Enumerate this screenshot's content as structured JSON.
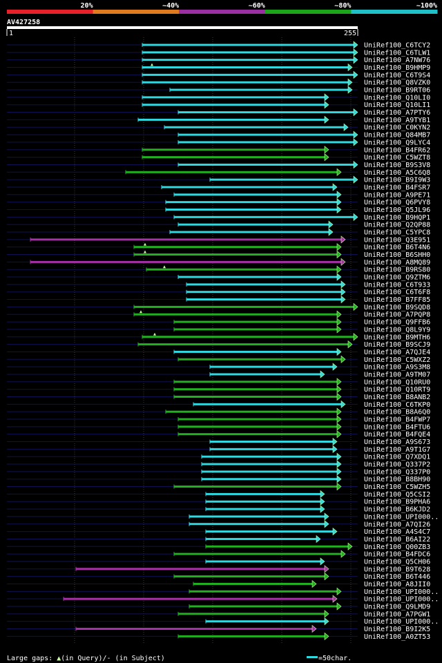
{
  "chart_data": {
    "type": "alignment-overview",
    "query_name": "AV427258",
    "query_start": "1",
    "query_end": "255",
    "identity_legend": [
      {
        "label": "20%",
        "color": "#e8202a"
      },
      {
        "label": "~40%",
        "color": "#e07a1f"
      },
      {
        "label": "~60%",
        "color": "#9a2ea3"
      },
      {
        "label": "~80%",
        "color": "#1aa51a"
      },
      {
        "label": "~100%",
        "color": "#20c0c8"
      }
    ],
    "colors": {
      "navy": "#101050",
      "grid": "#3a3a3a",
      "cyan": "#30d8e0",
      "green": "#20b020",
      "magenta": "#a830a8",
      "marker": "#c8ffa0"
    },
    "footer": {
      "gaps_label": "Large gaps: ",
      "gaps_query": "(in Query)/",
      "gaps_subject": "- (in Subject)",
      "scale_label": "=50char."
    },
    "x_domain": [
      1,
      255
    ],
    "hits": [
      {
        "name": "UniRef100_C6TCY2",
        "color": "cyan",
        "start": 99,
        "end": 255,
        "markers": []
      },
      {
        "name": "UniRef100_C6TLW1",
        "color": "cyan",
        "start": 99,
        "end": 255,
        "markers": []
      },
      {
        "name": "UniRef100_A7NW76",
        "color": "cyan",
        "start": 99,
        "end": 255,
        "markers": []
      },
      {
        "name": "UniRef100_B9HMP9",
        "color": "cyan",
        "start": 99,
        "end": 251,
        "markers": [
          106
        ]
      },
      {
        "name": "UniRef100_C6T9S4",
        "color": "cyan",
        "start": 99,
        "end": 255,
        "markers": []
      },
      {
        "name": "UniRef100_Q8VZK0",
        "color": "cyan",
        "start": 99,
        "end": 251,
        "markers": []
      },
      {
        "name": "UniRef100_B9RT06",
        "color": "cyan",
        "start": 119,
        "end": 251,
        "markers": []
      },
      {
        "name": "UniRef100_Q10LI0",
        "color": "cyan",
        "start": 99,
        "end": 234,
        "markers": []
      },
      {
        "name": "UniRef100_Q10LI1",
        "color": "cyan",
        "start": 99,
        "end": 234,
        "markers": []
      },
      {
        "name": "UniRef100_A7PTY6",
        "color": "cyan",
        "start": 125,
        "end": 255,
        "markers": []
      },
      {
        "name": "UniRef100_A9TYB1",
        "color": "cyan",
        "start": 96,
        "end": 234,
        "markers": []
      },
      {
        "name": "UniRef100_C0KYN2",
        "color": "cyan",
        "start": 115,
        "end": 248,
        "markers": []
      },
      {
        "name": "UniRef100_Q84MB7",
        "color": "cyan",
        "start": 125,
        "end": 255,
        "markers": []
      },
      {
        "name": "UniRef100_Q9LYC4",
        "color": "cyan",
        "start": 125,
        "end": 255,
        "markers": []
      },
      {
        "name": "UniRef100_B4FR62",
        "color": "green",
        "start": 99,
        "end": 234,
        "markers": []
      },
      {
        "name": "UniRef100_C5WZT8",
        "color": "green",
        "start": 99,
        "end": 234,
        "markers": []
      },
      {
        "name": "UniRef100_B9S3V8",
        "color": "cyan",
        "start": 125,
        "end": 255,
        "markers": []
      },
      {
        "name": "UniRef100_A5C6Q8",
        "color": "green",
        "start": 87,
        "end": 243,
        "markers": []
      },
      {
        "name": "UniRef100_B9I9W3",
        "color": "cyan",
        "start": 148,
        "end": 255,
        "markers": []
      },
      {
        "name": "UniRef100_B4FSR7",
        "color": "cyan",
        "start": 113,
        "end": 240,
        "markers": []
      },
      {
        "name": "UniRef100_A9PE71",
        "color": "cyan",
        "start": 122,
        "end": 243,
        "markers": []
      },
      {
        "name": "UniRef100_Q6PVY8",
        "color": "cyan",
        "start": 116,
        "end": 243,
        "markers": []
      },
      {
        "name": "UniRef100_Q5JL96",
        "color": "cyan",
        "start": 116,
        "end": 243,
        "markers": []
      },
      {
        "name": "UniRef100_B9HQP1",
        "color": "cyan",
        "start": 122,
        "end": 255,
        "markers": []
      },
      {
        "name": "UniRef100_Q2QP88",
        "color": "cyan",
        "start": 125,
        "end": 237,
        "markers": []
      },
      {
        "name": "UniRef100_C5YPC8",
        "color": "cyan",
        "start": 119,
        "end": 237,
        "markers": []
      },
      {
        "name": "UniRef100_Q3E951",
        "color": "magenta",
        "start": 18,
        "end": 246,
        "markers": []
      },
      {
        "name": "UniRef100_B6T4N6",
        "color": "green",
        "start": 93,
        "end": 243,
        "markers": [
          101
        ]
      },
      {
        "name": "UniRef100_B6SHH0",
        "color": "green",
        "start": 93,
        "end": 243,
        "markers": [
          101
        ]
      },
      {
        "name": "UniRef100_A8MQ89",
        "color": "magenta",
        "start": 18,
        "end": 246,
        "markers": []
      },
      {
        "name": "UniRef100_B9RS80",
        "color": "green",
        "start": 102,
        "end": 243,
        "markers": [
          115
        ]
      },
      {
        "name": "UniRef100_Q9ZTM6",
        "color": "cyan",
        "start": 125,
        "end": 243,
        "markers": []
      },
      {
        "name": "UniRef100_C6T933",
        "color": "cyan",
        "start": 131,
        "end": 246,
        "markers": []
      },
      {
        "name": "UniRef100_C6T6F8",
        "color": "cyan",
        "start": 131,
        "end": 246,
        "markers": []
      },
      {
        "name": "UniRef100_B7FF85",
        "color": "cyan",
        "start": 131,
        "end": 246,
        "markers": []
      },
      {
        "name": "UniRef100_B9SQD8",
        "color": "green",
        "start": 93,
        "end": 255,
        "markers": []
      },
      {
        "name": "UniRef100_A7PQP8",
        "color": "green",
        "start": 93,
        "end": 243,
        "markers": [
          98
        ]
      },
      {
        "name": "UniRef100_Q9FFB6",
        "color": "green",
        "start": 122,
        "end": 243,
        "markers": []
      },
      {
        "name": "UniRef100_Q8L9Y9",
        "color": "green",
        "start": 122,
        "end": 243,
        "markers": []
      },
      {
        "name": "UniRef100_B9MTH6",
        "color": "green",
        "start": 99,
        "end": 255,
        "markers": [
          108
        ]
      },
      {
        "name": "UniRef100_B9SCJ9",
        "color": "green",
        "start": 96,
        "end": 251,
        "markers": []
      },
      {
        "name": "UniRef100_A7QJE4",
        "color": "cyan",
        "start": 122,
        "end": 243,
        "markers": []
      },
      {
        "name": "UniRef100_C5WXZ2",
        "color": "green",
        "start": 125,
        "end": 246,
        "markers": []
      },
      {
        "name": "UniRef100_A9S3M8",
        "color": "cyan",
        "start": 148,
        "end": 240,
        "markers": []
      },
      {
        "name": "UniRef100_A9TM07",
        "color": "cyan",
        "start": 148,
        "end": 231,
        "markers": []
      },
      {
        "name": "UniRef100_Q10RU0",
        "color": "green",
        "start": 122,
        "end": 243,
        "markers": []
      },
      {
        "name": "UniRef100_Q10RT9",
        "color": "green",
        "start": 122,
        "end": 243,
        "markers": []
      },
      {
        "name": "UniRef100_B8ANB2",
        "color": "green",
        "start": 122,
        "end": 243,
        "markers": []
      },
      {
        "name": "UniRef100_C6TKP0",
        "color": "cyan",
        "start": 136,
        "end": 246,
        "markers": []
      },
      {
        "name": "UniRef100_B8A6Q0",
        "color": "green",
        "start": 116,
        "end": 243,
        "markers": []
      },
      {
        "name": "UniRef100_B4FWP7",
        "color": "green",
        "start": 125,
        "end": 243,
        "markers": []
      },
      {
        "name": "UniRef100_B4FTU6",
        "color": "green",
        "start": 125,
        "end": 243,
        "markers": []
      },
      {
        "name": "UniRef100_B4FQE4",
        "color": "green",
        "start": 125,
        "end": 243,
        "markers": []
      },
      {
        "name": "UniRef100_A9S673",
        "color": "cyan",
        "start": 148,
        "end": 240,
        "markers": []
      },
      {
        "name": "UniRef100_A9T1G7",
        "color": "cyan",
        "start": 148,
        "end": 240,
        "markers": []
      },
      {
        "name": "UniRef100_Q7XDQ1",
        "color": "cyan",
        "start": 142,
        "end": 243,
        "markers": []
      },
      {
        "name": "UniRef100_Q337P2",
        "color": "cyan",
        "start": 142,
        "end": 243,
        "markers": []
      },
      {
        "name": "UniRef100_Q337P0",
        "color": "cyan",
        "start": 142,
        "end": 243,
        "markers": []
      },
      {
        "name": "UniRef100_B8BH90",
        "color": "cyan",
        "start": 142,
        "end": 243,
        "markers": []
      },
      {
        "name": "UniRef100_C5WZH5",
        "color": "green",
        "start": 122,
        "end": 243,
        "markers": []
      },
      {
        "name": "UniRef100_Q5CSI2",
        "color": "cyan",
        "start": 145,
        "end": 231,
        "markers": []
      },
      {
        "name": "UniRef100_B9PHA6",
        "color": "cyan",
        "start": 145,
        "end": 231,
        "markers": []
      },
      {
        "name": "UniRef100_B6KJD2",
        "color": "cyan",
        "start": 145,
        "end": 231,
        "markers": []
      },
      {
        "name": "UniRef100_UPI000..",
        "color": "cyan",
        "start": 133,
        "end": 234,
        "markers": []
      },
      {
        "name": "UniRef100_A7QI26",
        "color": "cyan",
        "start": 133,
        "end": 234,
        "markers": []
      },
      {
        "name": "UniRef100_A4S4C7",
        "color": "cyan",
        "start": 145,
        "end": 240,
        "markers": []
      },
      {
        "name": "UniRef100_B6AI22",
        "color": "cyan",
        "start": 145,
        "end": 228,
        "markers": []
      },
      {
        "name": "UniRef100_Q00ZB3",
        "color": "green",
        "start": 145,
        "end": 251,
        "markers": []
      },
      {
        "name": "UniRef100_B4FDC6",
        "color": "green",
        "start": 122,
        "end": 246,
        "markers": []
      },
      {
        "name": "UniRef100_Q5CH06",
        "color": "cyan",
        "start": 145,
        "end": 231,
        "markers": []
      },
      {
        "name": "UniRef100_B9T628",
        "color": "magenta",
        "start": 51,
        "end": 234,
        "markers": []
      },
      {
        "name": "UniRef100_B6T446",
        "color": "green",
        "start": 122,
        "end": 234,
        "markers": []
      },
      {
        "name": "UniRef100_A8JII0",
        "color": "green",
        "start": 136,
        "end": 225,
        "markers": []
      },
      {
        "name": "UniRef100_UPI000..",
        "color": "green",
        "start": 133,
        "end": 243,
        "markers": []
      },
      {
        "name": "UniRef100_UPI000..",
        "color": "magenta",
        "start": 42,
        "end": 240,
        "markers": []
      },
      {
        "name": "UniRef100_Q9LMD9",
        "color": "green",
        "start": 133,
        "end": 243,
        "markers": []
      },
      {
        "name": "UniRef100_A7PGW1",
        "color": "green",
        "start": 125,
        "end": 234,
        "markers": []
      },
      {
        "name": "UniRef100_UPI000..",
        "color": "cyan",
        "start": 145,
        "end": 234,
        "markers": []
      },
      {
        "name": "UniRef100_B9I2K5",
        "color": "magenta",
        "start": 51,
        "end": 225,
        "markers": []
      },
      {
        "name": "UniRef100_A0ZT53",
        "color": "green",
        "start": 125,
        "end": 234,
        "markers": []
      }
    ]
  }
}
